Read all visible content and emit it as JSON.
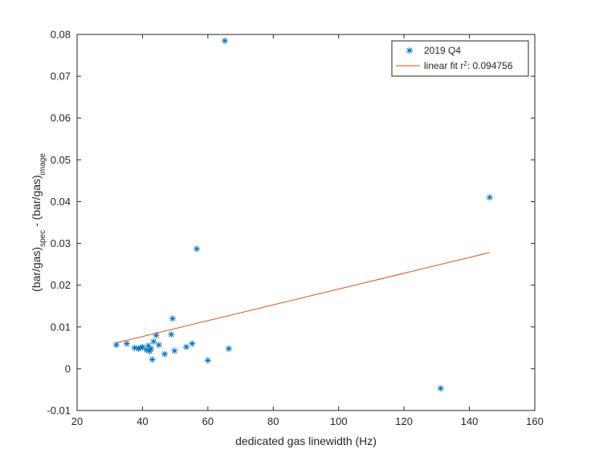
{
  "chart_data": {
    "type": "scatter",
    "title": "",
    "xlabel": "dedicated gas linewidth (Hz)",
    "ylabel": {
      "parts": [
        {
          "text": "(bar/gas)",
          "sub": false
        },
        {
          "text": "spec",
          "sub": true
        },
        {
          "text": " - (bar/gas)",
          "sub": false
        },
        {
          "text": "image",
          "sub": true
        }
      ]
    },
    "xlim": [
      20,
      160
    ],
    "ylim": [
      -0.01,
      0.08
    ],
    "xticks": [
      20,
      40,
      60,
      80,
      100,
      120,
      140,
      160
    ],
    "xtick_labels": [
      "20",
      "40",
      "60",
      "80",
      "100",
      "120",
      "140",
      "160"
    ],
    "yticks": [
      -0.01,
      0,
      0.01,
      0.02,
      0.03,
      0.04,
      0.05,
      0.06,
      0.07,
      0.08
    ],
    "ytick_labels": [
      "-0.01",
      "0",
      "0.01",
      "0.02",
      "0.03",
      "0.04",
      "0.05",
      "0.06",
      "0.07",
      "0.08"
    ],
    "grid": false,
    "legend_position": "top-right",
    "series": [
      {
        "name": "2019 Q4",
        "kind": "scatter",
        "marker": "asterisk",
        "color": "#0072BD",
        "points": [
          {
            "x": 32.0,
            "y": 0.0057
          },
          {
            "x": 35.2,
            "y": 0.006
          },
          {
            "x": 37.6,
            "y": 0.005
          },
          {
            "x": 38.8,
            "y": 0.0048
          },
          {
            "x": 39.4,
            "y": 0.005
          },
          {
            "x": 40.0,
            "y": 0.0052
          },
          {
            "x": 41.2,
            "y": 0.0045
          },
          {
            "x": 41.8,
            "y": 0.0055
          },
          {
            "x": 42.2,
            "y": 0.0042
          },
          {
            "x": 42.6,
            "y": 0.0048
          },
          {
            "x": 43.0,
            "y": 0.0022
          },
          {
            "x": 43.4,
            "y": 0.0065
          },
          {
            "x": 44.2,
            "y": 0.008
          },
          {
            "x": 45.0,
            "y": 0.0057
          },
          {
            "x": 46.8,
            "y": 0.0035
          },
          {
            "x": 48.8,
            "y": 0.0082
          },
          {
            "x": 49.2,
            "y": 0.012
          },
          {
            "x": 49.8,
            "y": 0.0043
          },
          {
            "x": 53.4,
            "y": 0.0052
          },
          {
            "x": 55.2,
            "y": 0.006
          },
          {
            "x": 56.6,
            "y": 0.0287
          },
          {
            "x": 60.0,
            "y": 0.002
          },
          {
            "x": 65.2,
            "y": 0.0785
          },
          {
            "x": 66.4,
            "y": 0.0048
          },
          {
            "x": 131.2,
            "y": -0.0047
          },
          {
            "x": 146.2,
            "y": 0.041
          }
        ]
      },
      {
        "name": "linear fit r",
        "name_sup": "2",
        "name_suffix": ": 0.094756",
        "kind": "line",
        "color": "#D95319",
        "points": [
          {
            "x": 32.0,
            "y": 0.0062
          },
          {
            "x": 146.2,
            "y": 0.0278
          }
        ]
      }
    ]
  }
}
